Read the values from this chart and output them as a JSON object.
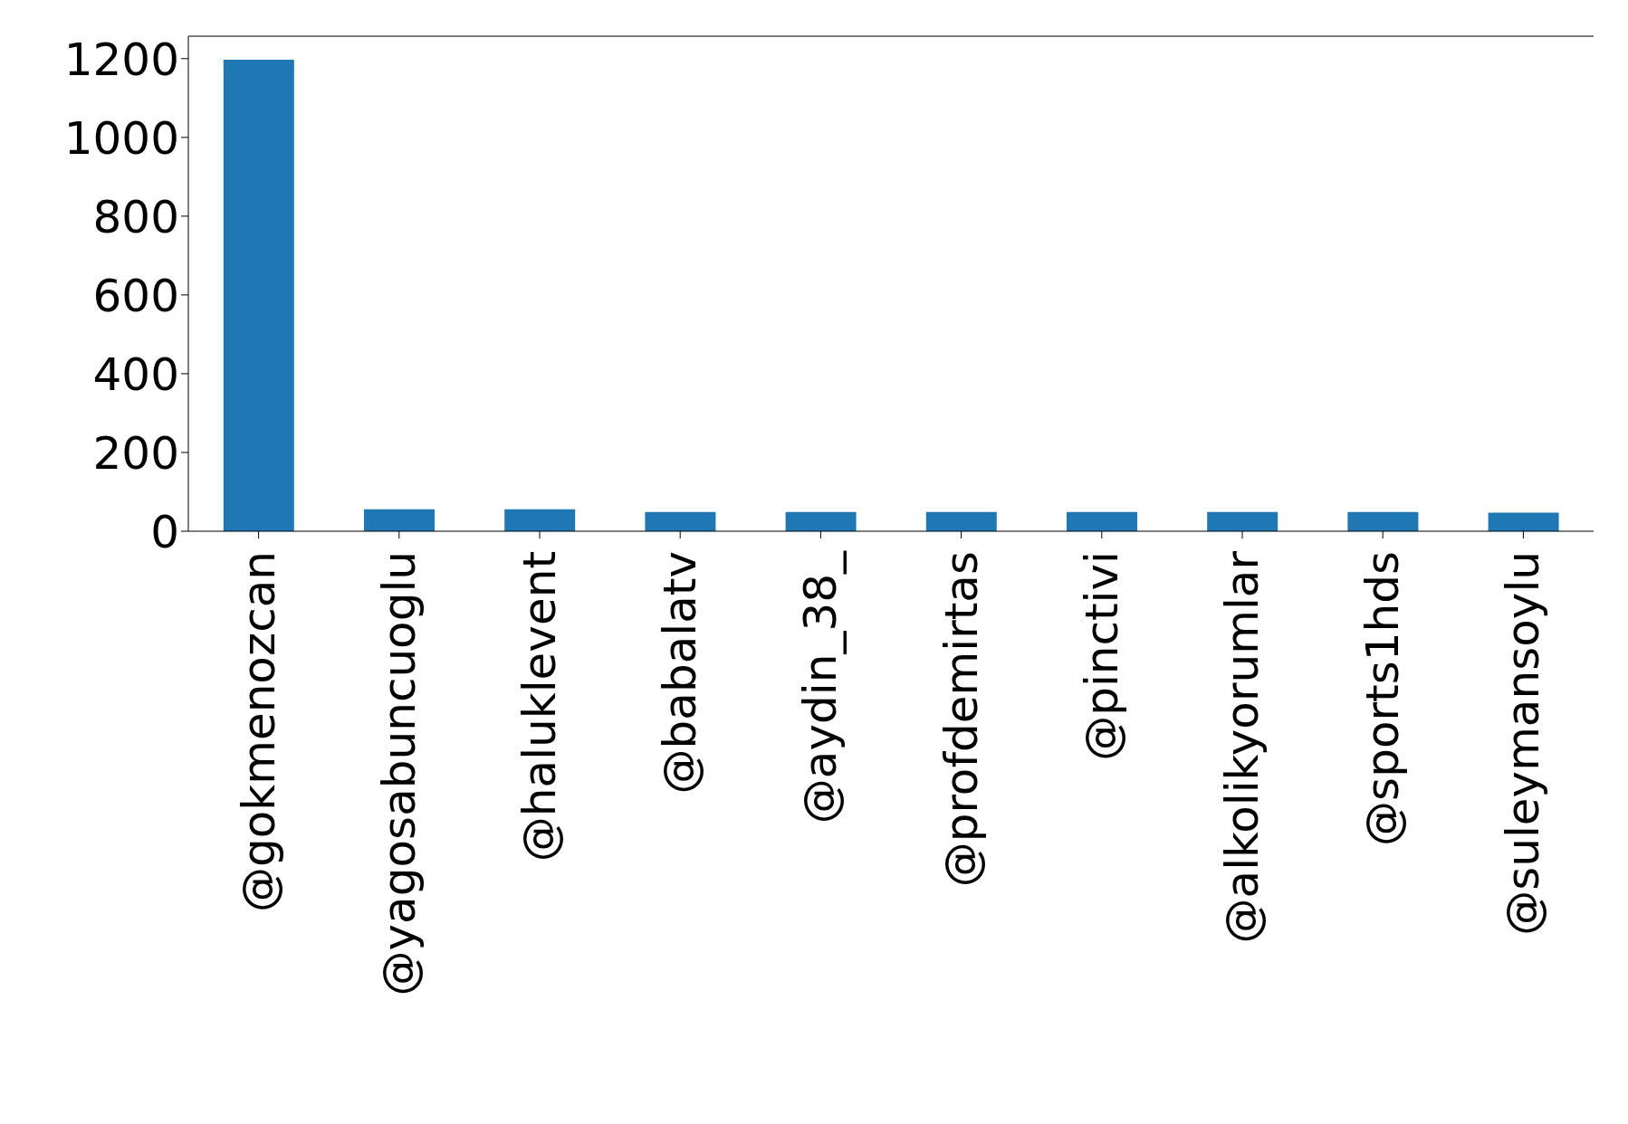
{
  "chart_data": {
    "type": "bar",
    "categories": [
      "@gokmenozcan",
      "@yagosabuncuoglu",
      "@haluklevent",
      "@babalatv",
      "@aydin_38_",
      "@profdemirtas",
      "@pinctivi",
      "@alkolikyorumlar",
      "@sports1hds",
      "@suleymansoylu"
    ],
    "values": [
      1197,
      56,
      56,
      49,
      49,
      49,
      49,
      49,
      49,
      47
    ],
    "color": "#1f77b4",
    "ylim": [
      0,
      1257
    ],
    "yticks": [
      0,
      200,
      400,
      600,
      800,
      1000,
      1200
    ],
    "grid": false,
    "legend": false
  }
}
